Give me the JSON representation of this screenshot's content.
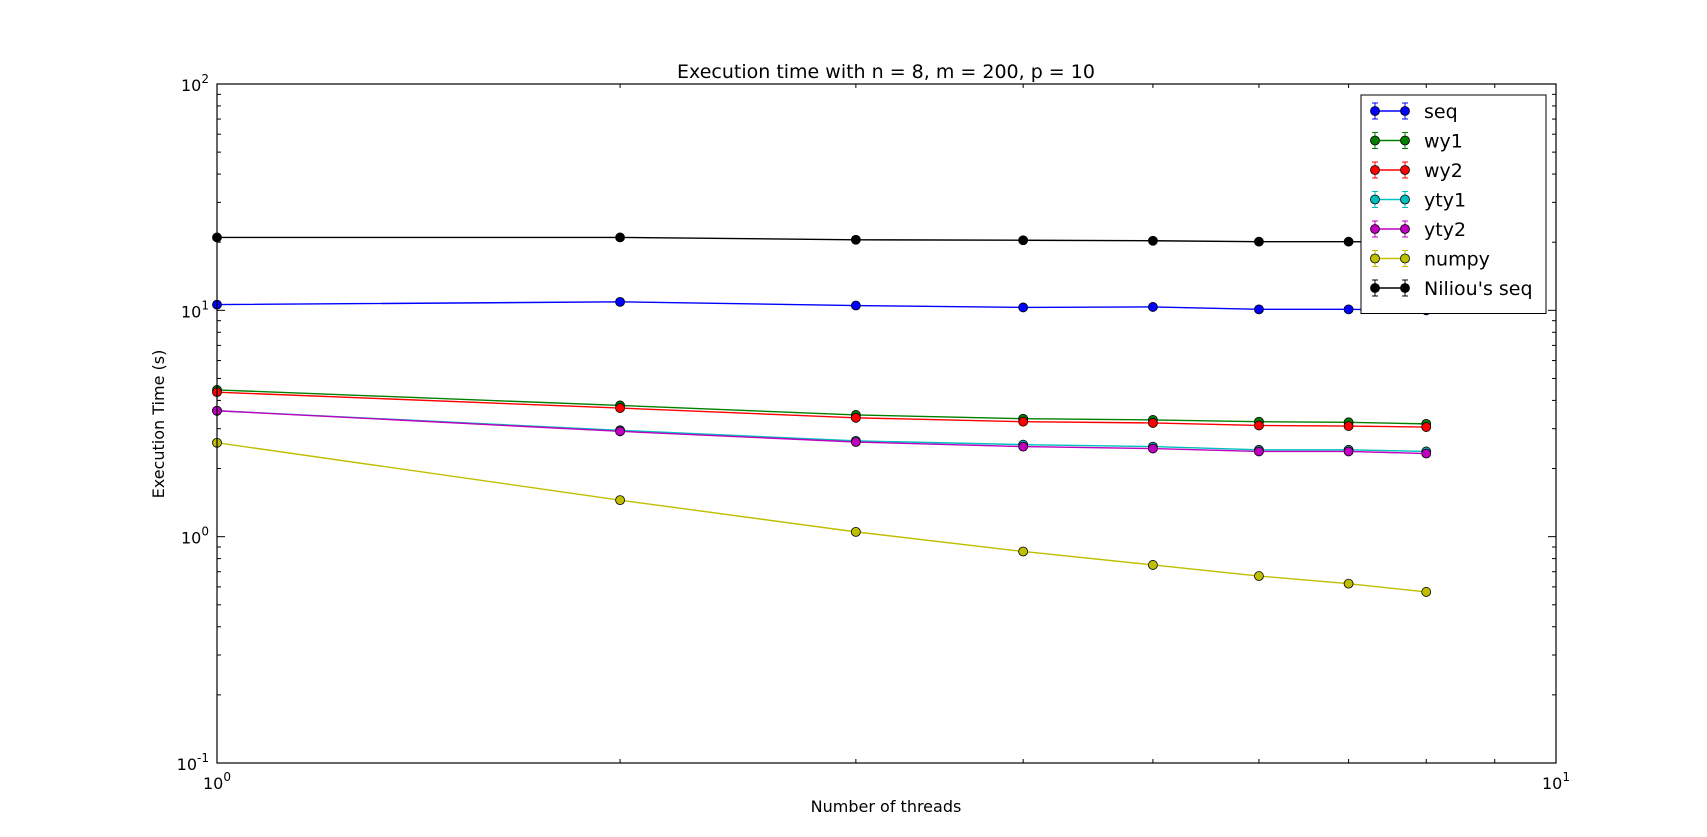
{
  "chart_data": {
    "type": "line",
    "title": "Execution time with n = 8, m = 200, p = 10",
    "xlabel": "Number of threads",
    "ylabel": "Execution Time (s)",
    "xscale": "log",
    "yscale": "log",
    "xlim": [
      1,
      10
    ],
    "ylim": [
      0.1,
      100
    ],
    "x_ticks": [
      {
        "value": 1,
        "base": "10",
        "exp": "0"
      },
      {
        "value": 10,
        "base": "10",
        "exp": "1"
      }
    ],
    "y_ticks": [
      {
        "value": 0.1,
        "base": "10",
        "exp": "-1"
      },
      {
        "value": 1,
        "base": "10",
        "exp": "0"
      },
      {
        "value": 10,
        "base": "10",
        "exp": "1"
      },
      {
        "value": 100,
        "base": "10",
        "exp": "2"
      }
    ],
    "grid": false,
    "legend_position": "top-right",
    "x": [
      1,
      2,
      3,
      4,
      5,
      6,
      7,
      8
    ],
    "series": [
      {
        "name": "seq",
        "color": "#0000ff",
        "values": [
          10.6,
          10.9,
          10.5,
          10.3,
          10.35,
          10.1,
          10.1,
          10.0
        ]
      },
      {
        "name": "wy1",
        "color": "#008000",
        "values": [
          4.45,
          3.8,
          3.45,
          3.32,
          3.28,
          3.22,
          3.2,
          3.15
        ]
      },
      {
        "name": "wy2",
        "color": "#ff0000",
        "values": [
          4.35,
          3.7,
          3.35,
          3.22,
          3.18,
          3.1,
          3.08,
          3.05
        ]
      },
      {
        "name": "yty1",
        "color": "#00bfbf",
        "values": [
          3.6,
          2.95,
          2.65,
          2.55,
          2.5,
          2.42,
          2.42,
          2.38
        ]
      },
      {
        "name": "yty2",
        "color": "#bf00bf",
        "values": [
          3.6,
          2.92,
          2.62,
          2.5,
          2.45,
          2.38,
          2.38,
          2.33
        ]
      },
      {
        "name": "numpy",
        "color": "#bfbf00",
        "values": [
          2.6,
          1.45,
          1.05,
          0.86,
          0.75,
          0.67,
          0.62,
          0.57
        ]
      },
      {
        "name": "Niliou's seq",
        "color": "#000000",
        "values": [
          21.0,
          21.0,
          20.5,
          20.4,
          20.3,
          20.1,
          20.1,
          20.0
        ]
      }
    ]
  }
}
